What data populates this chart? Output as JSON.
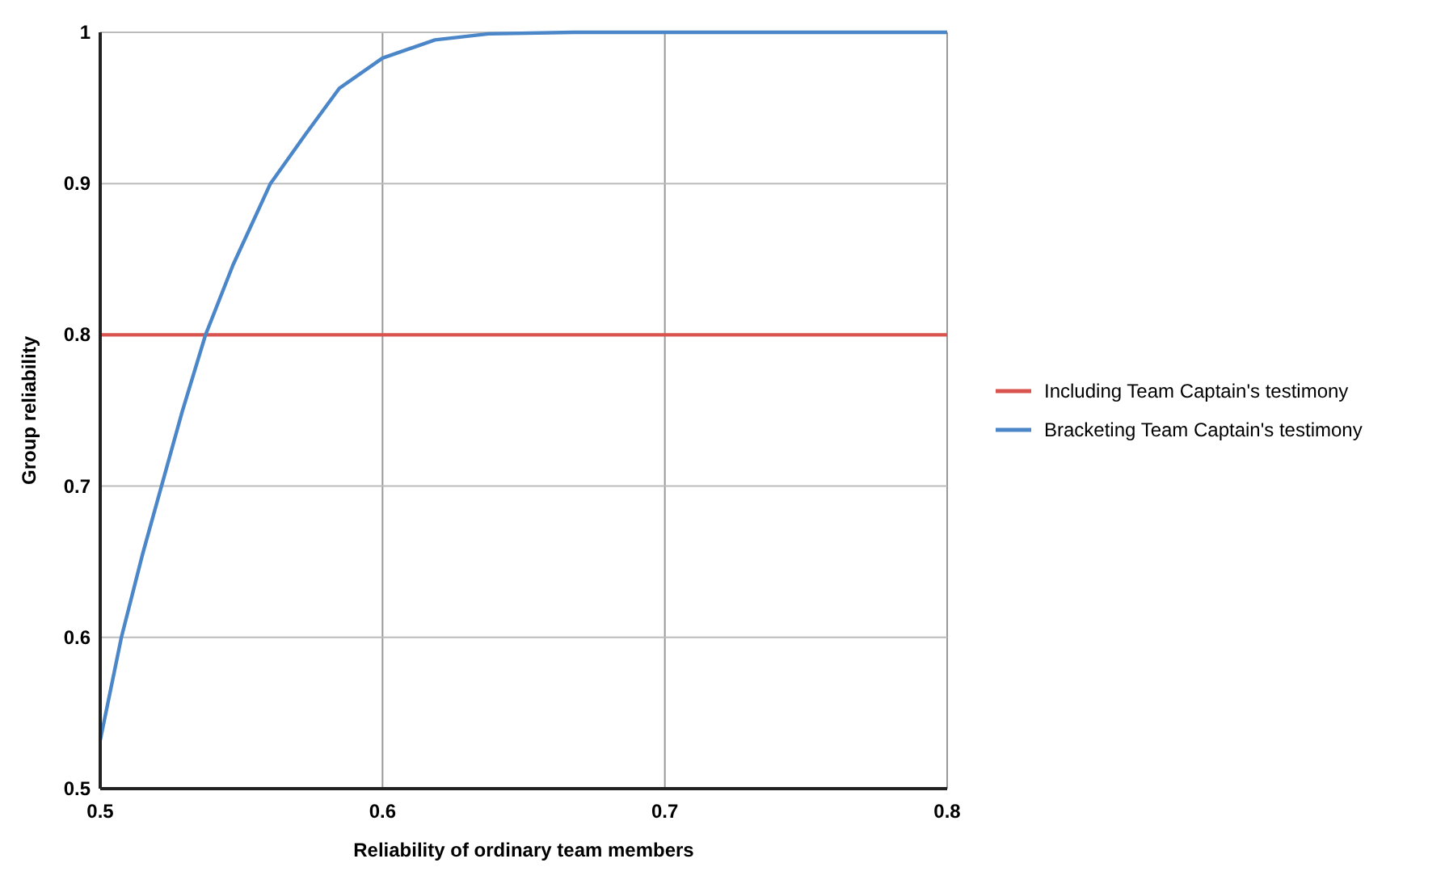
{
  "chart_data": {
    "type": "line",
    "xlabel": "Reliability of ordinary team members",
    "ylabel": "Group reliability",
    "xlim": [
      0.5,
      0.8
    ],
    "xticks": [
      0.5,
      0.6,
      0.7,
      0.8
    ],
    "ylim": [
      0.5,
      1
    ],
    "yticks": [
      0.5,
      0.6,
      0.7,
      0.8,
      0.9,
      1
    ],
    "grid": true,
    "legend": "right",
    "marker": "none",
    "line_style": "solid",
    "series": [
      {
        "name": "Including Team Captain's testimony",
        "color": "#d9534f",
        "x": [
          0.5,
          0.8
        ],
        "values": [
          0.8,
          0.8
        ]
      },
      {
        "name": "Bracketing Team Captain's testimony",
        "color": "#4a86c8",
        "x": [
          0.5,
          0.5075,
          0.515,
          0.5217,
          0.529,
          0.5373,
          0.547,
          0.5603,
          0.5725,
          0.5847,
          0.6,
          0.6186,
          0.6375,
          0.6676,
          0.7,
          0.8
        ],
        "values": [
          0.532,
          0.6,
          0.655,
          0.7,
          0.749,
          0.8,
          0.846,
          0.9,
          0.932,
          0.963,
          0.983,
          0.995,
          0.999,
          1,
          1,
          1
        ]
      }
    ]
  }
}
